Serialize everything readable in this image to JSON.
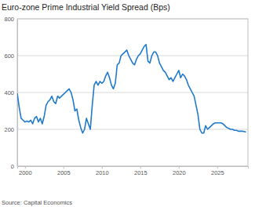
{
  "chart_data": {
    "type": "line",
    "title": "Euro-zone Prime Industrial Yield Spread (Bps)",
    "source": "Source: Capital Economics",
    "color": "#1f7acc",
    "grid": true,
    "xlim": [
      1999,
      2029
    ],
    "xticks": [
      2000,
      2005,
      2010,
      2015,
      2020,
      2025
    ],
    "ylim": [
      0,
      800
    ],
    "yticks": [
      0,
      200,
      400,
      600,
      800
    ],
    "x": [
      1999,
      1999.25,
      1999.5,
      1999.75,
      2000,
      2000.25,
      2000.5,
      2000.75,
      2001,
      2001.25,
      2001.5,
      2001.75,
      2002,
      2002.25,
      2002.5,
      2002.75,
      2003,
      2003.25,
      2003.5,
      2003.75,
      2004,
      2004.25,
      2004.5,
      2004.75,
      2005,
      2005.25,
      2005.5,
      2005.75,
      2006,
      2006.25,
      2006.5,
      2006.75,
      2007,
      2007.25,
      2007.5,
      2007.75,
      2008,
      2008.25,
      2008.5,
      2008.75,
      2009,
      2009.25,
      2009.5,
      2009.75,
      2010,
      2010.25,
      2010.5,
      2010.75,
      2011,
      2011.25,
      2011.5,
      2011.75,
      2012,
      2012.25,
      2012.5,
      2012.75,
      2013,
      2013.25,
      2013.5,
      2013.75,
      2014,
      2014.25,
      2014.5,
      2014.75,
      2015,
      2015.25,
      2015.5,
      2015.75,
      2016,
      2016.25,
      2016.5,
      2016.75,
      2017,
      2017.25,
      2017.5,
      2017.75,
      2018,
      2018.25,
      2018.5,
      2018.75,
      2019,
      2019.25,
      2019.5,
      2019.75,
      2020,
      2020.25,
      2020.5,
      2020.75,
      2021,
      2021.25,
      2021.5,
      2021.75,
      2022,
      2022.25,
      2022.5,
      2022.75,
      2023,
      2023.25,
      2023.5,
      2023.75,
      2024,
      2024.25,
      2024.5,
      2024.75,
      2025,
      2025.25,
      2025.5,
      2025.75,
      2026,
      2026.25,
      2026.5,
      2026.75,
      2027,
      2027.25,
      2027.5,
      2027.75,
      2028,
      2028.25,
      2028.5,
      2028.75
    ],
    "values": [
      395,
      320,
      260,
      250,
      240,
      245,
      240,
      250,
      230,
      260,
      270,
      240,
      260,
      230,
      270,
      330,
      350,
      360,
      380,
      350,
      340,
      380,
      370,
      380,
      390,
      400,
      410,
      420,
      400,
      360,
      300,
      310,
      250,
      210,
      180,
      200,
      260,
      230,
      200,
      330,
      440,
      460,
      440,
      460,
      450,
      460,
      490,
      510,
      480,
      440,
      420,
      450,
      550,
      560,
      600,
      610,
      620,
      630,
      600,
      580,
      560,
      550,
      580,
      600,
      610,
      630,
      650,
      660,
      570,
      560,
      600,
      620,
      620,
      600,
      560,
      540,
      520,
      510,
      490,
      470,
      480,
      460,
      480,
      500,
      520,
      480,
      500,
      490,
      470,
      440,
      420,
      400,
      380,
      330,
      280,
      200,
      180,
      180,
      220,
      200,
      210,
      220,
      230,
      235,
      235,
      235,
      235,
      230,
      220,
      210,
      205,
      200,
      200,
      195,
      195,
      190,
      190,
      190,
      188,
      185
    ]
  }
}
